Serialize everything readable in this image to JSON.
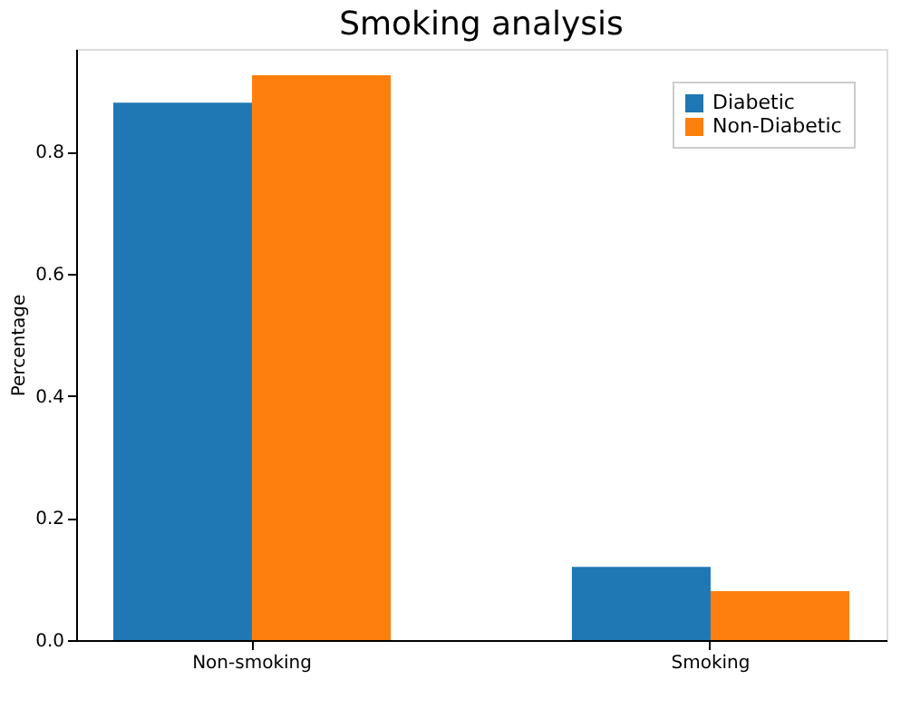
{
  "chart_data": {
    "type": "bar",
    "title": "Smoking analysis",
    "ylabel": "Percentage",
    "categories": [
      "Non-smoking",
      "Smoking"
    ],
    "series": [
      {
        "name": "Diabetic",
        "color": "#1f77b4",
        "values": [
          0.88,
          0.12
        ]
      },
      {
        "name": "Non-Diabetic",
        "color": "#ff7f0e",
        "values": [
          0.925,
          0.08
        ]
      }
    ],
    "ylim": [
      0,
      0.968
    ],
    "yticks": [
      {
        "value": 0,
        "label": "0.0"
      },
      0.2,
      0.4,
      0.6,
      0.8
    ],
    "grid": false,
    "legend": "top right"
  }
}
